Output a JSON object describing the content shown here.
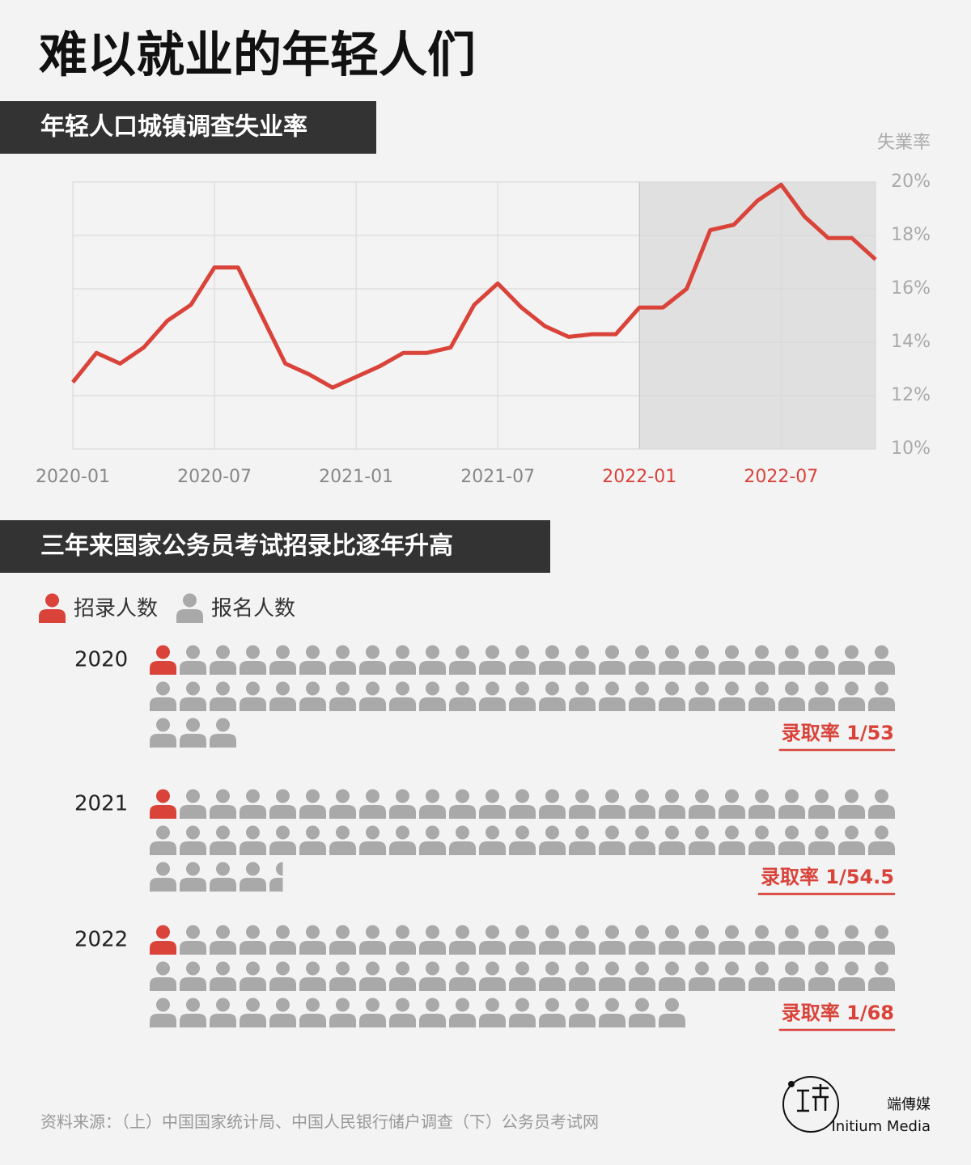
{
  "title": "难以就业的年轻人们",
  "chart_data": [
    {
      "type": "line",
      "title": "年轻人口城镇调查失业率",
      "ylabel": "失業率",
      "color": "#d9433a",
      "categories": [
        "2020-01",
        null,
        null,
        null,
        null,
        null,
        "2020-07",
        null,
        null,
        null,
        null,
        null,
        "2021-01",
        null,
        null,
        null,
        null,
        null,
        "2021-07",
        null,
        null,
        null,
        null,
        null,
        "2022-01",
        null,
        null,
        null,
        null,
        null,
        "2022-07",
        null,
        null,
        null,
        null
      ],
      "values": [
        12.5,
        13.6,
        13.2,
        13.8,
        14.8,
        15.4,
        16.8,
        16.8,
        15.0,
        13.2,
        12.8,
        12.3,
        12.7,
        13.1,
        13.6,
        13.6,
        13.8,
        15.4,
        16.2,
        15.3,
        14.6,
        14.2,
        14.3,
        14.3,
        15.3,
        15.3,
        16.0,
        18.2,
        18.4,
        19.3,
        19.9,
        18.7,
        17.9,
        17.9,
        17.1
      ],
      "ylim": [
        10,
        20
      ],
      "yticks": [
        {
          "value": 10,
          "label": "10%"
        },
        {
          "value": 12,
          "label": "12%"
        },
        {
          "value": 14,
          "label": "14%"
        },
        {
          "value": 16,
          "label": "16%"
        },
        {
          "value": 18,
          "label": "18%"
        },
        {
          "value": 20,
          "label": "20%"
        }
      ],
      "grid": true,
      "highlight": {
        "from": "2022-01",
        "color": "#e0e0e0"
      }
    },
    {
      "type": "pictograph",
      "title": "三年来国家公务员考试招录比逐年升高",
      "categories": [
        "2020",
        "2021",
        "2022"
      ],
      "series": [
        {
          "name": "招录人数",
          "color": "#d9433a",
          "values": [
            1,
            1,
            1
          ]
        },
        {
          "name": "报名人数",
          "color": "#a9a9a9",
          "values": [
            53,
            54.5,
            68
          ]
        }
      ],
      "value_labels": [
        "录取率 1/53",
        "录取率 1/54.5",
        "录取率 1/68"
      ]
    }
  ],
  "footer": {
    "source": "资料来源：（上）中国国家统计局、中国人民银行储户调查（下）公务员考试网",
    "brand": "端傳媒",
    "brand_en": "Initium Media"
  }
}
